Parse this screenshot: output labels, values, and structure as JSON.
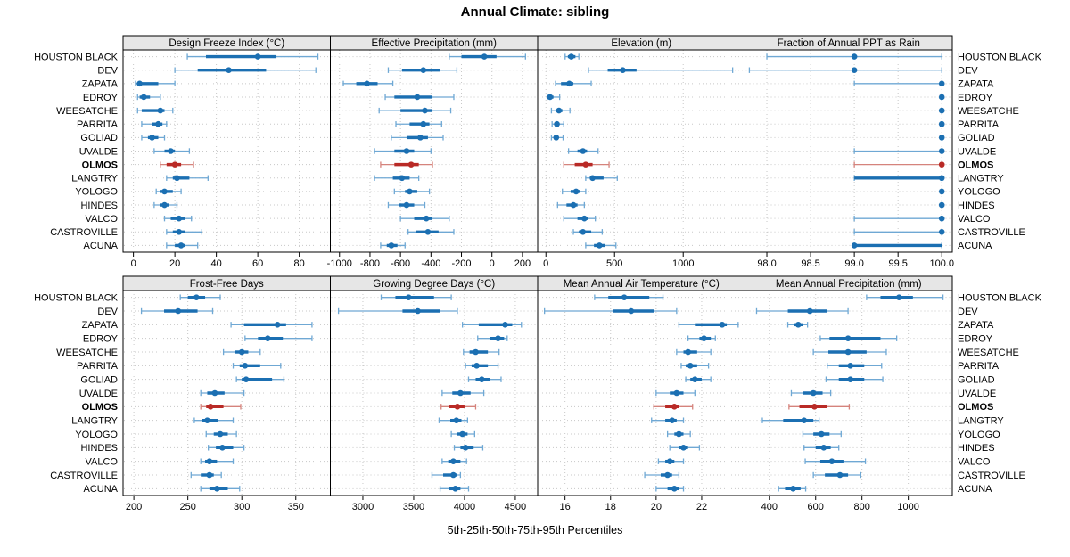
{
  "title": "Annual Climate: sibling",
  "footer": "5th-25th-50th-75th-95th Percentiles",
  "chart_data": {
    "type": "percentile-dotplot",
    "percentiles": [
      5,
      25,
      50,
      75,
      95
    ],
    "legend_note": "5th-25th-50th-75th-95th Percentiles",
    "stations": [
      "HOUSTON BLACK",
      "DEV",
      "ZAPATA",
      "EDROY",
      "WEESATCHE",
      "PARRITA",
      "GOLIAD",
      "UVALDE",
      "OLMOS",
      "LANGTRY",
      "YOLOGO",
      "HINDES",
      "VALCO",
      "CASTROVILLE",
      "ACUNA"
    ],
    "highlight_station": "OLMOS",
    "colors": {
      "series": "#1b6fb2",
      "series_light": "#6fa8d4",
      "highlight": "#b92a26",
      "highlight_light": "#d5837c",
      "header_bg": "#e6e6e6",
      "grid": "#c8c8c8",
      "border": "#000000"
    },
    "panels": [
      {
        "title": "Design Freeze Index (°C)",
        "ticks": [
          0,
          20,
          40,
          60,
          80
        ],
        "tick_labels": [
          "0",
          "20",
          "40",
          "60",
          "80"
        ],
        "xlim": [
          -5,
          95
        ],
        "values": [
          [
            26,
            35,
            60,
            69,
            89
          ],
          [
            20,
            31,
            46,
            64,
            88
          ],
          [
            1,
            2,
            3,
            12,
            20
          ],
          [
            2,
            3,
            5,
            8,
            13
          ],
          [
            2,
            4,
            13,
            15,
            19
          ],
          [
            4,
            9,
            12,
            14,
            16
          ],
          [
            4,
            7,
            9,
            12,
            15
          ],
          [
            10,
            15,
            18,
            20,
            27
          ],
          [
            13,
            16,
            20,
            23,
            29
          ],
          [
            16,
            19,
            21,
            27,
            36
          ],
          [
            11,
            13,
            15,
            19,
            23
          ],
          [
            10,
            13,
            15,
            17,
            21
          ],
          [
            15,
            18,
            22,
            25,
            28
          ],
          [
            16,
            19,
            22,
            25,
            33
          ],
          [
            16,
            20,
            23,
            25,
            31
          ]
        ]
      },
      {
        "title": "Effective Precipitation (mm)",
        "ticks": [
          -1000,
          -800,
          -600,
          -400,
          -200,
          0,
          200
        ],
        "tick_labels": [
          "-1000",
          "-800",
          "-600",
          "-400",
          "-200",
          "0",
          "200"
        ],
        "xlim": [
          -1060,
          300
        ],
        "values": [
          [
            -280,
            -200,
            -50,
            30,
            220
          ],
          [
            -680,
            -590,
            -450,
            -340,
            -230
          ],
          [
            -975,
            -890,
            -820,
            -750,
            -650
          ],
          [
            -700,
            -640,
            -490,
            -390,
            -250
          ],
          [
            -740,
            -600,
            -440,
            -390,
            -270
          ],
          [
            -630,
            -540,
            -450,
            -410,
            -330
          ],
          [
            -660,
            -560,
            -470,
            -420,
            -320
          ],
          [
            -770,
            -640,
            -560,
            -510,
            -400
          ],
          [
            -730,
            -640,
            -530,
            -480,
            -390
          ],
          [
            -770,
            -650,
            -590,
            -540,
            -480
          ],
          [
            -640,
            -570,
            -540,
            -490,
            -410
          ],
          [
            -680,
            -610,
            -560,
            -510,
            -440
          ],
          [
            -600,
            -510,
            -430,
            -390,
            -280
          ],
          [
            -550,
            -500,
            -420,
            -350,
            -250
          ],
          [
            -730,
            -690,
            -660,
            -620,
            -570
          ]
        ]
      },
      {
        "title": "Elevation (m)",
        "ticks": [
          0,
          500,
          1000
        ],
        "tick_labels": [
          "0",
          "500",
          "1000"
        ],
        "xlim": [
          -60,
          1450
        ],
        "values": [
          [
            140,
            160,
            185,
            215,
            240
          ],
          [
            310,
            450,
            560,
            660,
            1360
          ],
          [
            70,
            110,
            170,
            200,
            330
          ],
          [
            10,
            20,
            30,
            55,
            100
          ],
          [
            40,
            70,
            95,
            120,
            175
          ],
          [
            45,
            65,
            80,
            95,
            130
          ],
          [
            40,
            60,
            75,
            90,
            125
          ],
          [
            165,
            230,
            270,
            300,
            380
          ],
          [
            130,
            210,
            290,
            340,
            460
          ],
          [
            290,
            320,
            340,
            420,
            520
          ],
          [
            120,
            180,
            220,
            250,
            290
          ],
          [
            85,
            150,
            200,
            230,
            280
          ],
          [
            130,
            230,
            280,
            310,
            360
          ],
          [
            200,
            240,
            270,
            330,
            410
          ],
          [
            290,
            350,
            390,
            430,
            510
          ]
        ]
      },
      {
        "title": "Fraction of Annual PPT as Rain",
        "ticks": [
          98.0,
          98.5,
          99.0,
          99.5,
          100.0
        ],
        "tick_labels": [
          "98.0",
          "98.5",
          "99.0",
          "99.5",
          "100.0"
        ],
        "xlim": [
          97.75,
          100.12
        ],
        "values": [
          [
            98.0,
            99.0,
            99.0,
            99.0,
            100.0
          ],
          [
            97.8,
            99.0,
            99.0,
            99.0,
            100.0
          ],
          [
            99.0,
            100.0,
            100.0,
            100.0,
            100.0
          ],
          [
            100.0,
            100.0,
            100.0,
            100.0,
            100.0
          ],
          [
            100.0,
            100.0,
            100.0,
            100.0,
            100.0
          ],
          [
            100.0,
            100.0,
            100.0,
            100.0,
            100.0
          ],
          [
            100.0,
            100.0,
            100.0,
            100.0,
            100.0
          ],
          [
            99.0,
            100.0,
            100.0,
            100.0,
            100.0
          ],
          [
            99.0,
            100.0,
            100.0,
            100.0,
            100.0
          ],
          [
            99.0,
            99.0,
            100.0,
            100.0,
            100.0
          ],
          [
            100.0,
            100.0,
            100.0,
            100.0,
            100.0
          ],
          [
            100.0,
            100.0,
            100.0,
            100.0,
            100.0
          ],
          [
            99.0,
            100.0,
            100.0,
            100.0,
            100.0
          ],
          [
            99.0,
            100.0,
            100.0,
            100.0,
            100.0
          ],
          [
            99.0,
            99.0,
            99.0,
            100.0,
            100.0
          ]
        ]
      },
      {
        "title": "Frost-Free Days",
        "ticks": [
          200,
          250,
          300,
          350
        ],
        "tick_labels": [
          "200",
          "250",
          "300",
          "350"
        ],
        "xlim": [
          190,
          382
        ],
        "values": [
          [
            243,
            250,
            258,
            266,
            280
          ],
          [
            207,
            228,
            241,
            259,
            273
          ],
          [
            290,
            302,
            333,
            341,
            365
          ],
          [
            303,
            315,
            324,
            338,
            365
          ],
          [
            283,
            294,
            300,
            306,
            317
          ],
          [
            292,
            298,
            303,
            317,
            336
          ],
          [
            295,
            300,
            304,
            328,
            339
          ],
          [
            262,
            268,
            275,
            284,
            302
          ],
          [
            262,
            267,
            271,
            283,
            299
          ],
          [
            256,
            263,
            268,
            278,
            292
          ],
          [
            267,
            274,
            280,
            287,
            295
          ],
          [
            269,
            276,
            282,
            292,
            302
          ],
          [
            262,
            266,
            270,
            277,
            292
          ],
          [
            253,
            262,
            270,
            274,
            281
          ],
          [
            262,
            270,
            277,
            287,
            298
          ]
        ]
      },
      {
        "title": "Growing Degree Days (°C)",
        "ticks": [
          3000,
          3500,
          4000,
          4500
        ],
        "tick_labels": [
          "3000",
          "3500",
          "4000",
          "4500"
        ],
        "xlim": [
          2680,
          4720
        ],
        "values": [
          [
            3180,
            3320,
            3450,
            3700,
            3870
          ],
          [
            2760,
            3390,
            3540,
            3760,
            3930
          ],
          [
            3980,
            4140,
            4400,
            4470,
            4560
          ],
          [
            4130,
            4250,
            4330,
            4390,
            4420
          ],
          [
            3990,
            4050,
            4110,
            4230,
            4340
          ],
          [
            4010,
            4070,
            4120,
            4230,
            4330
          ],
          [
            4040,
            4110,
            4170,
            4250,
            4360
          ],
          [
            3780,
            3880,
            3960,
            4060,
            4190
          ],
          [
            3770,
            3850,
            3930,
            4000,
            4110
          ],
          [
            3750,
            3860,
            3920,
            3970,
            4030
          ],
          [
            3870,
            3930,
            3980,
            4030,
            4100
          ],
          [
            3900,
            3960,
            4010,
            4090,
            4180
          ],
          [
            3780,
            3840,
            3890,
            3960,
            4020
          ],
          [
            3680,
            3790,
            3890,
            3930,
            3960
          ],
          [
            3760,
            3850,
            3910,
            3960,
            4040
          ]
        ]
      },
      {
        "title": "Mean Annual Air Temperature (°C)",
        "ticks": [
          16,
          18,
          20,
          22
        ],
        "tick_labels": [
          "16",
          "18",
          "20",
          "22"
        ],
        "xlim": [
          14.8,
          23.9
        ],
        "values": [
          [
            17.3,
            17.9,
            18.6,
            19.7,
            20.3
          ],
          [
            15.1,
            18.1,
            18.9,
            19.9,
            20.9
          ],
          [
            21.0,
            21.7,
            22.9,
            23.1,
            23.6
          ],
          [
            21.4,
            21.9,
            22.1,
            22.4,
            22.6
          ],
          [
            20.9,
            21.2,
            21.4,
            21.8,
            22.4
          ],
          [
            21.1,
            21.3,
            21.5,
            21.8,
            22.3
          ],
          [
            21.3,
            21.5,
            21.7,
            22.0,
            22.4
          ],
          [
            20.0,
            20.6,
            20.9,
            21.2,
            21.7
          ],
          [
            19.9,
            20.4,
            20.8,
            21.0,
            21.6
          ],
          [
            19.8,
            20.4,
            20.7,
            20.9,
            21.2
          ],
          [
            20.5,
            20.8,
            21.0,
            21.2,
            21.5
          ],
          [
            20.6,
            21.0,
            21.2,
            21.4,
            21.9
          ],
          [
            20.1,
            20.4,
            20.6,
            20.8,
            21.2
          ],
          [
            19.5,
            20.2,
            20.5,
            20.7,
            21.0
          ],
          [
            20.0,
            20.5,
            20.8,
            21.0,
            21.2
          ]
        ]
      },
      {
        "title": "Mean Annual Precipitation (mm)",
        "ticks": [
          400,
          600,
          800,
          1000
        ],
        "tick_labels": [
          "400",
          "600",
          "800",
          "1000"
        ],
        "xlim": [
          295,
          1190
        ],
        "values": [
          [
            820,
            880,
            960,
            1020,
            1150
          ],
          [
            345,
            480,
            575,
            650,
            740
          ],
          [
            480,
            505,
            525,
            545,
            565
          ],
          [
            620,
            660,
            740,
            880,
            950
          ],
          [
            590,
            655,
            740,
            820,
            905
          ],
          [
            650,
            700,
            750,
            810,
            885
          ],
          [
            645,
            700,
            750,
            810,
            890
          ],
          [
            495,
            545,
            590,
            630,
            665
          ],
          [
            485,
            530,
            595,
            650,
            745
          ],
          [
            370,
            460,
            550,
            590,
            615
          ],
          [
            545,
            590,
            625,
            660,
            710
          ],
          [
            550,
            600,
            635,
            665,
            700
          ],
          [
            555,
            620,
            670,
            720,
            815
          ],
          [
            590,
            640,
            705,
            740,
            795
          ],
          [
            440,
            468,
            503,
            535,
            557
          ]
        ]
      }
    ]
  }
}
